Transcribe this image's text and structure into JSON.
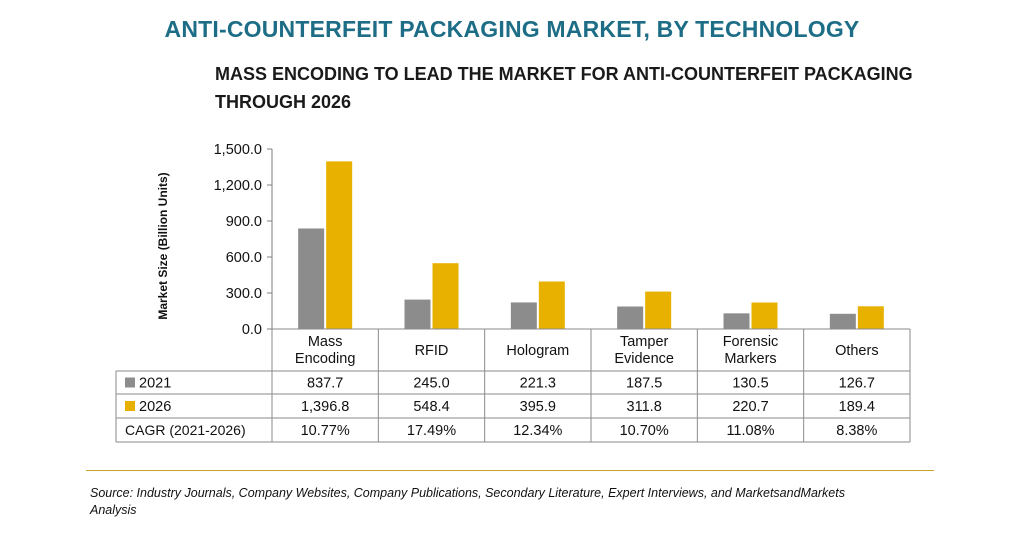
{
  "header": {
    "title": "ANTI-COUNTERFEIT PACKAGING MARKET, BY TECHNOLOGY",
    "subtitle": "MASS ENCODING TO LEAD THE MARKET FOR ANTI-COUNTERFEIT PACKAGING THROUGH 2026"
  },
  "chart_data": {
    "type": "bar",
    "title": "MASS ENCODING TO LEAD THE MARKET FOR ANTI-COUNTERFEIT PACKAGING THROUGH 2026",
    "ylabel": "Market Size (Billion Units)",
    "ylim": [
      0,
      1500
    ],
    "yticks": [
      0,
      300,
      600,
      900,
      1200,
      1500
    ],
    "ytick_labels": [
      "0.0",
      "300.0",
      "600.0",
      "900.0",
      "1,200.0",
      "1,500.0"
    ],
    "categories": [
      "Mass Encoding",
      "RFID",
      "Hologram",
      "Tamper Evidence",
      "Forensic Markers",
      "Others"
    ],
    "series": [
      {
        "name": "2021",
        "color": "#8c8c8c",
        "values": [
          837.7,
          245.0,
          221.3,
          187.5,
          130.5,
          126.7
        ],
        "value_labels": [
          "837.7",
          "245.0",
          "221.3",
          "187.5",
          "130.5",
          "126.7"
        ]
      },
      {
        "name": "2026",
        "color": "#e8b100",
        "values": [
          1396.8,
          548.4,
          395.9,
          311.8,
          220.7,
          189.4
        ],
        "value_labels": [
          "1,396.8",
          "548.4",
          "395.9",
          "311.8",
          "220.7",
          "189.4"
        ]
      }
    ],
    "table": {
      "cagr_label": "CAGR (2021-2026)",
      "cagr_values": [
        "10.77%",
        "17.49%",
        "12.34%",
        "10.70%",
        "11.08%",
        "8.38%"
      ]
    },
    "grid": false,
    "legend": "in data table"
  },
  "footer": {
    "source": "Source: Industry Journals, Company Websites, Company Publications, Secondary Literature, Expert Interviews, and MarketsandMarkets Analysis"
  }
}
